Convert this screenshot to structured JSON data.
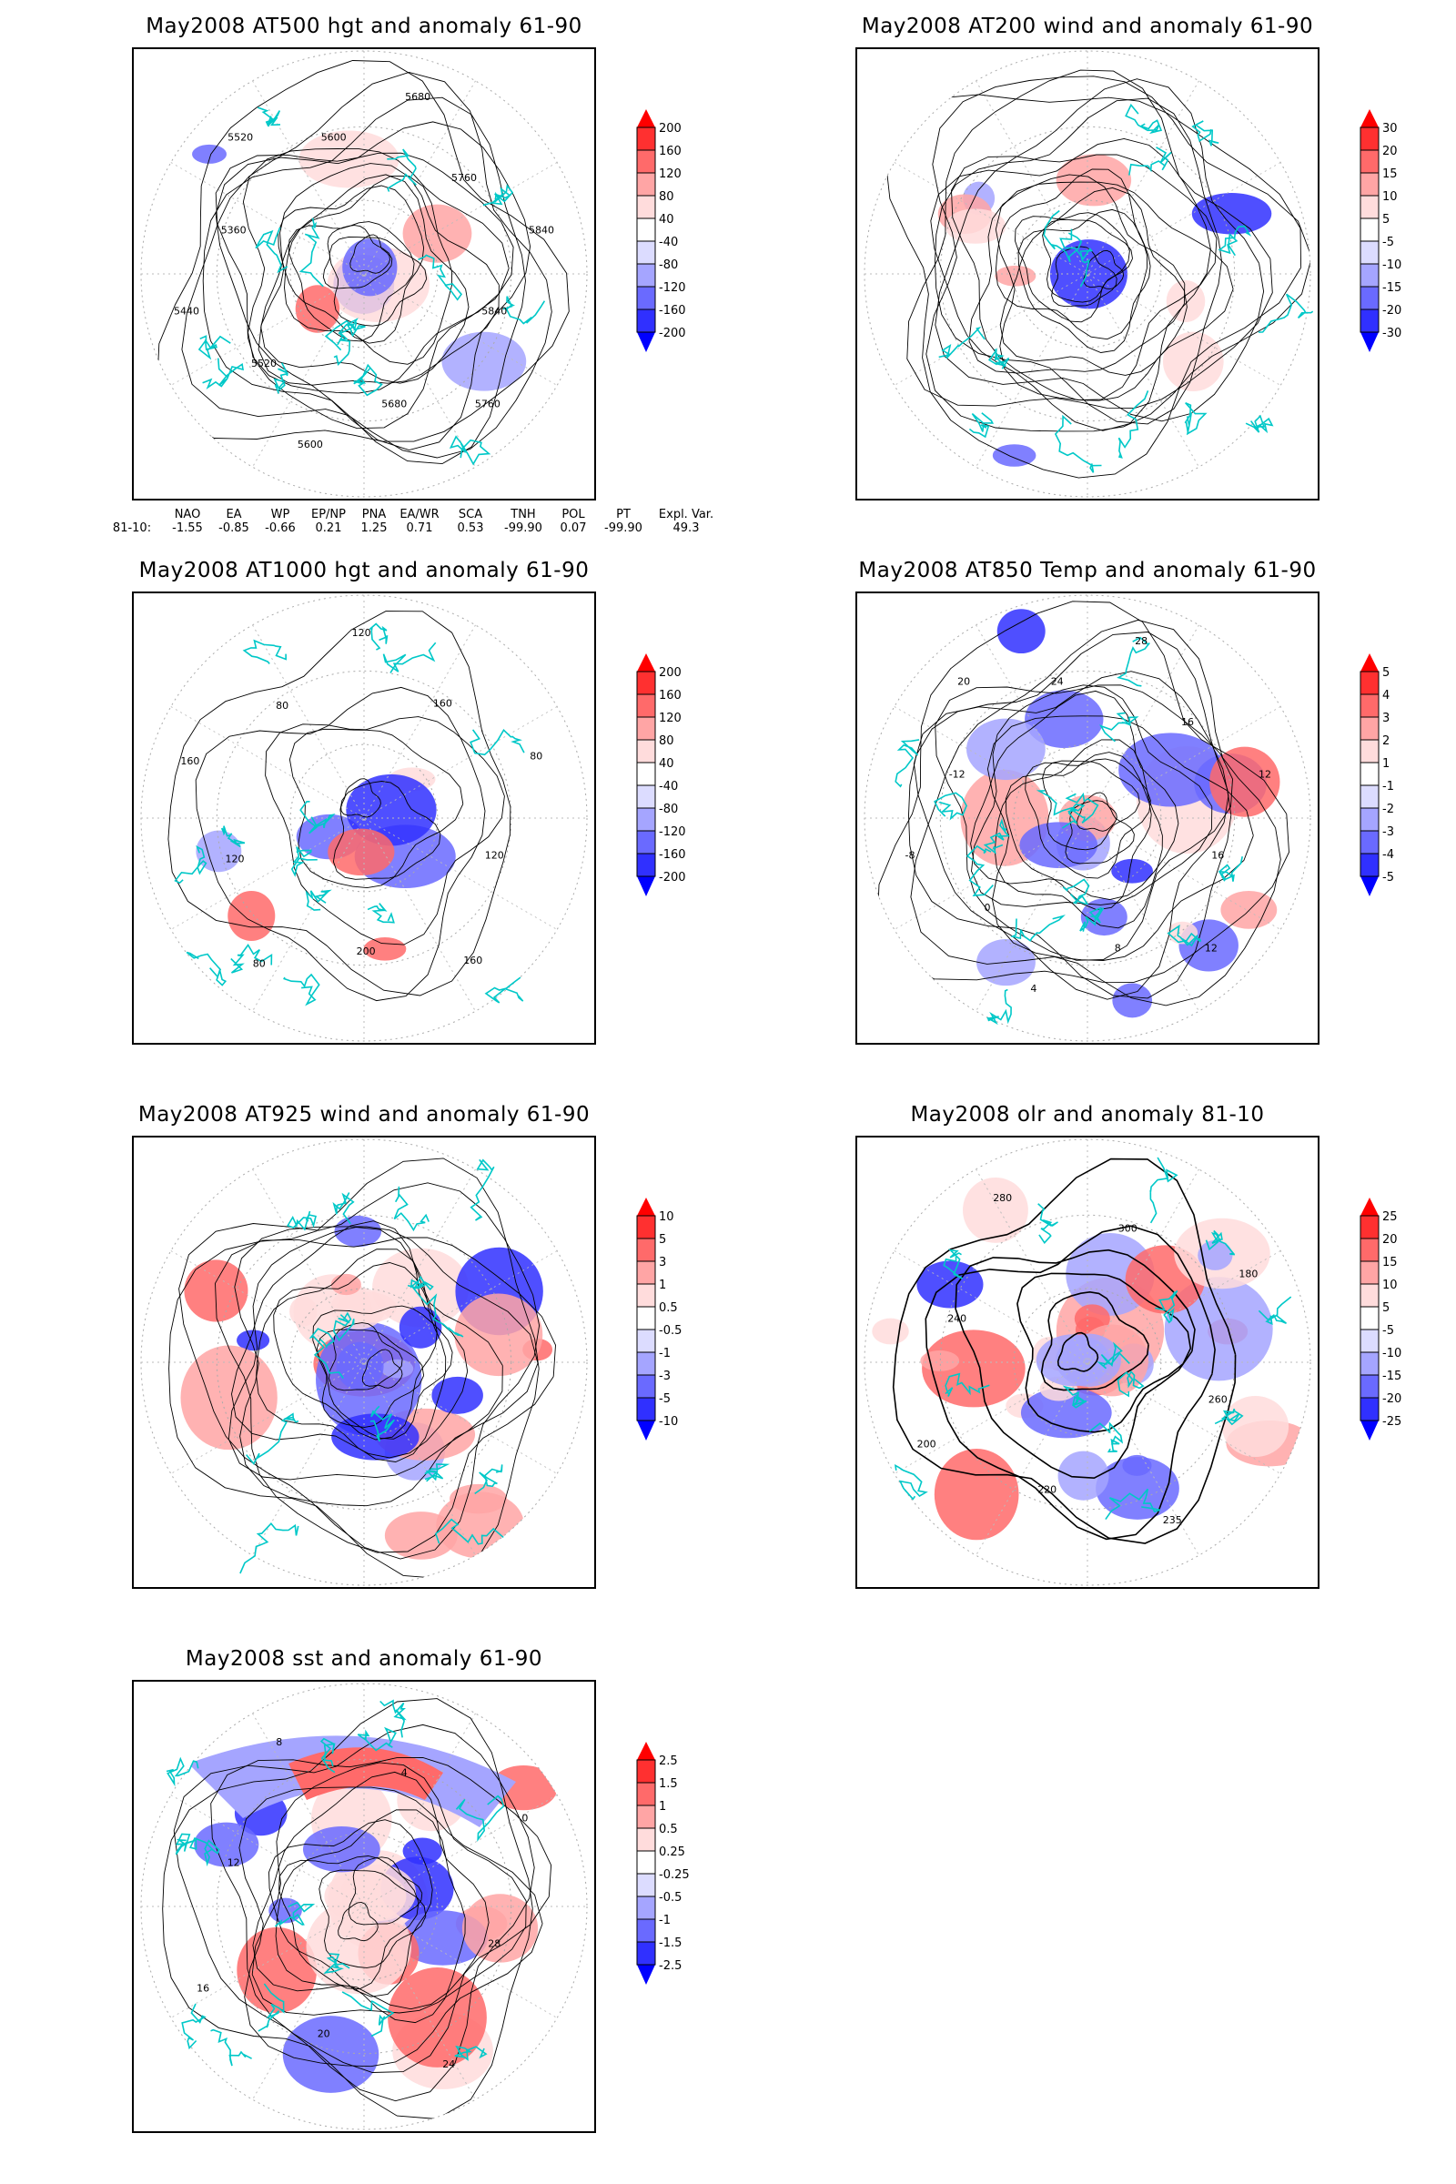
{
  "panels": [
    {
      "title": "May2008 AT500 hgt and anomaly 61-90",
      "levels": [
        "200",
        "160",
        "120",
        "80",
        "40",
        "-40",
        "-80",
        "-120",
        "-160",
        "-200"
      ],
      "contour_labels": [
        "5840",
        "5760",
        "5680",
        "5600",
        "5520",
        "5440",
        "5360",
        "5520",
        "5600",
        "5680",
        "5760",
        "5840"
      ]
    },
    {
      "title": "May2008 AT200 wind and anomaly 61-90",
      "levels": [
        "30",
        "20",
        "15",
        "10",
        "5",
        "-5",
        "-10",
        "-15",
        "-20",
        "-30"
      ],
      "contour_labels": []
    },
    {
      "title": "May2008 AT1000 hgt and anomaly 61-90",
      "levels": [
        "200",
        "160",
        "120",
        "80",
        "40",
        "-40",
        "-80",
        "-120",
        "-160",
        "-200"
      ],
      "contour_labels": [
        "120",
        "160",
        "200",
        "80",
        "120",
        "160",
        "80",
        "120",
        "160",
        "80"
      ]
    },
    {
      "title": "May2008 AT850 Temp and anomaly 61-90",
      "levels": [
        "5",
        "4",
        "3",
        "2",
        "1",
        "-1",
        "-2",
        "-3",
        "-4",
        "-5"
      ],
      "contour_labels": [
        "16",
        "12",
        "8",
        "4",
        "0",
        "-8",
        "-12",
        "20",
        "24",
        "28",
        "16",
        "12"
      ]
    },
    {
      "title": "May2008 AT925 wind and anomaly 61-90",
      "levels": [
        "10",
        "5",
        "3",
        "1",
        "0.5",
        "-0.5",
        "-1",
        "-3",
        "-5",
        "-10"
      ],
      "contour_labels": []
    },
    {
      "title": "May2008 olr and anomaly 81-10",
      "levels": [
        "25",
        "20",
        "15",
        "10",
        "5",
        "-5",
        "-10",
        "-15",
        "-20",
        "-25"
      ],
      "contour_labels": [
        "260",
        "235",
        "220",
        "200",
        "240",
        "280",
        "300",
        "180"
      ]
    },
    {
      "title": "May2008 sst and anomaly 61-90",
      "levels": [
        "2.5",
        "1.5",
        "1",
        "0.5",
        "0.25",
        "-0.25",
        "-0.5",
        "-1",
        "-1.5",
        "-2.5"
      ],
      "contour_labels": [
        "28",
        "24",
        "20",
        "16",
        "12",
        "8",
        "4",
        "0"
      ]
    }
  ],
  "indices": {
    "headers": [
      "NAO",
      "EA",
      "WP",
      "EP/NP",
      "PNA",
      "EA/WR",
      "SCA",
      "TNH",
      "POL",
      "PT",
      "Expl. Var."
    ],
    "row_label": "81-10:",
    "values": [
      "-1.55",
      "-0.85",
      "-0.66",
      "0.21",
      "1.25",
      "0.71",
      "0.53",
      "-99.90",
      "0.07",
      "-99.90",
      "49.3"
    ]
  },
  "colors": {
    "red": "#ff0000",
    "blue": "#0000ff",
    "coast": "#00c8c8"
  },
  "chart_data": [
    {
      "type": "heatmap",
      "title": "May2008 AT500 hgt and anomaly 61-90",
      "legend": {
        "levels": [
          200,
          160,
          120,
          80,
          40,
          -40,
          -80,
          -120,
          -160,
          -200
        ]
      },
      "contours": [
        5360,
        5440,
        5520,
        5600,
        5680,
        5760,
        5840
      ]
    },
    {
      "type": "heatmap",
      "title": "May2008 AT200 wind and anomaly 61-90",
      "legend": {
        "levels": [
          30,
          20,
          15,
          10,
          5,
          -5,
          -10,
          -15,
          -20,
          -30
        ]
      }
    },
    {
      "type": "heatmap",
      "title": "May2008 AT1000 hgt and anomaly 61-90",
      "legend": {
        "levels": [
          200,
          160,
          120,
          80,
          40,
          -40,
          -80,
          -120,
          -160,
          -200
        ]
      },
      "contours": [
        80,
        120,
        160,
        200
      ]
    },
    {
      "type": "heatmap",
      "title": "May2008 AT850 Temp and anomaly 61-90",
      "legend": {
        "levels": [
          5,
          4,
          3,
          2,
          1,
          -1,
          -2,
          -3,
          -4,
          -5
        ]
      },
      "contours": [
        -12,
        -8,
        -4,
        0,
        4,
        8,
        12,
        16,
        20,
        24,
        28
      ]
    },
    {
      "type": "heatmap",
      "title": "May2008 AT925 wind and anomaly 61-90",
      "legend": {
        "levels": [
          10,
          5,
          3,
          1,
          0.5,
          -0.5,
          -1,
          -3,
          -5,
          -10
        ]
      }
    },
    {
      "type": "heatmap",
      "title": "May2008 olr and anomaly 81-10",
      "legend": {
        "levels": [
          25,
          20,
          15,
          10,
          5,
          -5,
          -10,
          -15,
          -20,
          -25
        ]
      },
      "contours": [
        180,
        200,
        220,
        235,
        240,
        260,
        280,
        300
      ]
    },
    {
      "type": "heatmap",
      "title": "May2008 sst and anomaly 61-90",
      "legend": {
        "levels": [
          2.5,
          1.5,
          1,
          0.5,
          0.25,
          -0.25,
          -0.5,
          -1,
          -1.5,
          -2.5
        ]
      },
      "contours": [
        0,
        4,
        8,
        12,
        16,
        20,
        24,
        28
      ]
    }
  ]
}
